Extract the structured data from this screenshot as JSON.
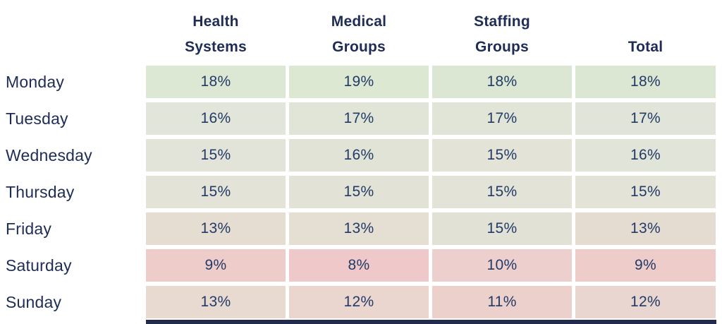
{
  "table": {
    "headers": [
      "Health\nSystems",
      "Medical\nGroups",
      "Staffing\nGroups",
      "Total"
    ],
    "rows": [
      {
        "day": "Monday",
        "cells": [
          {
            "value": "18%",
            "bg": "#dce8d4"
          },
          {
            "value": "19%",
            "bg": "#dde8d3"
          },
          {
            "value": "18%",
            "bg": "#dbe7d3"
          },
          {
            "value": "18%",
            "bg": "#dbe7d3"
          }
        ]
      },
      {
        "day": "Tuesday",
        "cells": [
          {
            "value": "16%",
            "bg": "#e2e5d9"
          },
          {
            "value": "17%",
            "bg": "#e0e5d8"
          },
          {
            "value": "17%",
            "bg": "#e0e5d8"
          },
          {
            "value": "17%",
            "bg": "#e1e5d9"
          }
        ]
      },
      {
        "day": "Wednesday",
        "cells": [
          {
            "value": "15%",
            "bg": "#e2e4d9"
          },
          {
            "value": "16%",
            "bg": "#e1e3d7"
          },
          {
            "value": "15%",
            "bg": "#e3e3d8"
          },
          {
            "value": "16%",
            "bg": "#e1e4d8"
          }
        ]
      },
      {
        "day": "Thursday",
        "cells": [
          {
            "value": "15%",
            "bg": "#e3e3d8"
          },
          {
            "value": "15%",
            "bg": "#e2e2d7"
          },
          {
            "value": "15%",
            "bg": "#e3e3d8"
          },
          {
            "value": "15%",
            "bg": "#e3e3d8"
          }
        ]
      },
      {
        "day": "Friday",
        "cells": [
          {
            "value": "13%",
            "bg": "#e5ddd2"
          },
          {
            "value": "13%",
            "bg": "#e5ded2"
          },
          {
            "value": "15%",
            "bg": "#e1e1d6"
          },
          {
            "value": "13%",
            "bg": "#e4dcd1"
          }
        ]
      },
      {
        "day": "Saturday",
        "cells": [
          {
            "value": "9%",
            "bg": "#eeccca"
          },
          {
            "value": "8%",
            "bg": "#efc9c9"
          },
          {
            "value": "10%",
            "bg": "#edd0ce"
          },
          {
            "value": "9%",
            "bg": "#eeccca"
          }
        ]
      },
      {
        "day": "Sunday",
        "cells": [
          {
            "value": "13%",
            "bg": "#e8dad1"
          },
          {
            "value": "12%",
            "bg": "#ead5cf"
          },
          {
            "value": "11%",
            "bg": "#ecd0cc"
          },
          {
            "value": "12%",
            "bg": "#e9d6d1"
          }
        ]
      }
    ]
  },
  "colors": {
    "text_navy": "#1e2c56",
    "value_navy": "#223a66",
    "heat_high_green": "#dbe7d3",
    "heat_mid_beige": "#e4dcd1",
    "heat_low_red": "#efc9c9",
    "bottom_bar_navy": "#222b4d",
    "background": "#ffffff"
  },
  "bottom_bar": {
    "bg": "#222b4d"
  },
  "chart_data": {
    "type": "heatmap",
    "title": "",
    "unit": "%",
    "categories": [
      "Monday",
      "Tuesday",
      "Wednesday",
      "Thursday",
      "Friday",
      "Saturday",
      "Sunday"
    ],
    "series": [
      {
        "name": "Health Systems",
        "values": [
          18,
          16,
          15,
          15,
          13,
          9,
          13
        ]
      },
      {
        "name": "Medical Groups",
        "values": [
          19,
          17,
          16,
          15,
          13,
          8,
          12
        ]
      },
      {
        "name": "Staffing Groups",
        "values": [
          18,
          17,
          15,
          15,
          15,
          10,
          11
        ]
      },
      {
        "name": "Total",
        "values": [
          18,
          17,
          16,
          15,
          13,
          9,
          12
        ]
      }
    ],
    "layout_hints": {
      "rows": "days of week",
      "columns": "organization types plus total",
      "color_scale": "green = high share, beige = middle, red/pink = low share",
      "legend": "none",
      "grid": "white gaps between colored cells"
    }
  }
}
